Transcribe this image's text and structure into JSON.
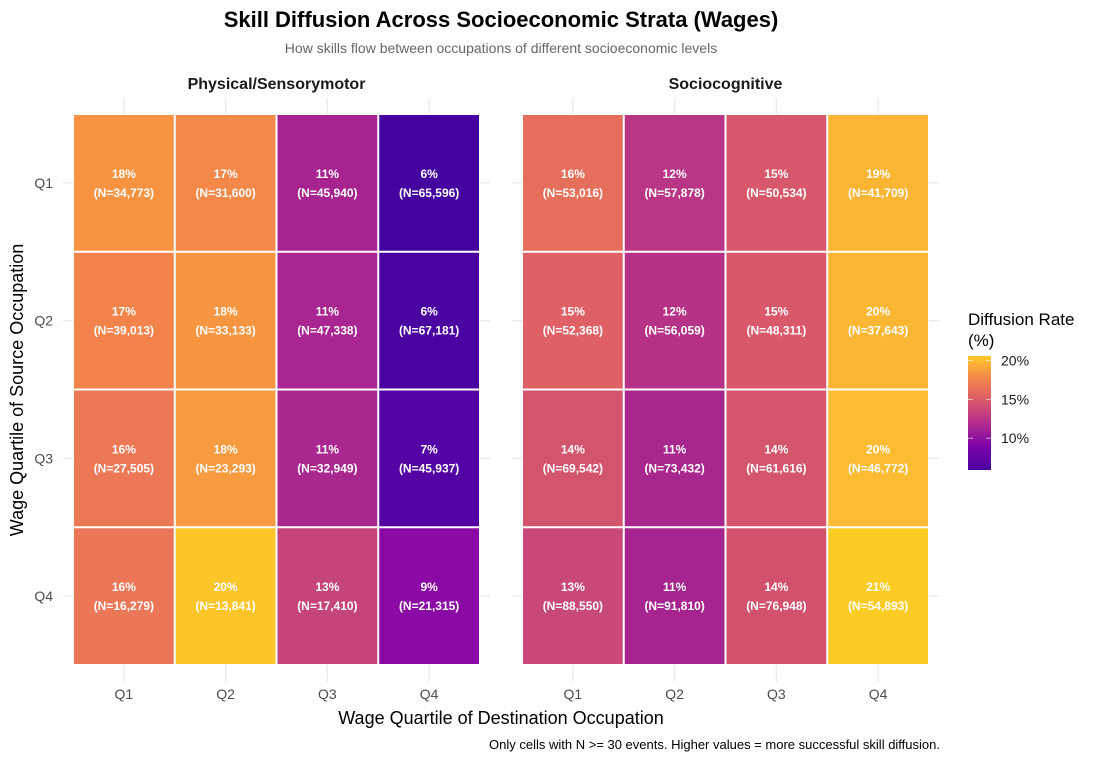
{
  "chart_data": {
    "type": "heatmap",
    "title": "Skill Diffusion Across Socioeconomic Strata (Wages)",
    "subtitle": "How skills flow between occupations of different socioeconomic levels",
    "xlabel": "Wage Quartile of Destination Occupation",
    "ylabel": "Wage Quartile of Source Occupation",
    "caption": "Only cells with N >= 30 events. Higher values = more successful skill diffusion.",
    "x_categories": [
      "Q1",
      "Q2",
      "Q3",
      "Q4"
    ],
    "y_categories": [
      "Q1",
      "Q2",
      "Q3",
      "Q4"
    ],
    "legend": {
      "title_line1": "Diffusion Rate",
      "title_line2": "(%)",
      "position": "right",
      "ticks": [
        {
          "value": 20,
          "label": "20%"
        },
        {
          "value": 15,
          "label": "15%"
        },
        {
          "value": 10,
          "label": "10%"
        }
      ],
      "limits": [
        5.9,
        20.6
      ],
      "palette": [
        "#0d0887",
        "#46039f",
        "#7201a8",
        "#9c179e",
        "#bd3786",
        "#d8576b",
        "#ed7953",
        "#fb9f3a",
        "#fdca26",
        "#f0f921"
      ]
    },
    "panels": [
      {
        "name": "Physical/Sensorymotor",
        "cells": [
          [
            {
              "value": 18,
              "label": "18%",
              "n": "(N=34,773)",
              "color": "#f89441"
            },
            {
              "value": 17,
              "label": "17%",
              "n": "(N=31,600)",
              "color": "#f48849"
            },
            {
              "value": 11,
              "label": "11%",
              "n": "(N=45,940)",
              "color": "#a62390"
            },
            {
              "value": 6,
              "label": "6%",
              "n": "(N=65,596)",
              "color": "#44039e"
            }
          ],
          [
            {
              "value": 17,
              "label": "17%",
              "n": "(N=39,013)",
              "color": "#f2844b"
            },
            {
              "value": 18,
              "label": "18%",
              "n": "(N=33,133)",
              "color": "#f89540"
            },
            {
              "value": 11,
              "label": "11%",
              "n": "(N=47,338)",
              "color": "#a82592"
            },
            {
              "value": 6,
              "label": "6%",
              "n": "(N=67,181)",
              "color": "#4a02a0"
            }
          ],
          [
            {
              "value": 16,
              "label": "16%",
              "n": "(N=27,505)",
              "color": "#ec7856"
            },
            {
              "value": 18,
              "label": "18%",
              "n": "(N=23,293)",
              "color": "#f89a3f"
            },
            {
              "value": 11,
              "label": "11%",
              "n": "(N=32,949)",
              "color": "#a82890"
            },
            {
              "value": 7,
              "label": "7%",
              "n": "(N=45,937)",
              "color": "#5302a3"
            }
          ],
          [
            {
              "value": 16,
              "label": "16%",
              "n": "(N=16,279)",
              "color": "#eb7758"
            },
            {
              "value": 20,
              "label": "20%",
              "n": "(N=13,841)",
              "color": "#fdc52a"
            },
            {
              "value": 13,
              "label": "13%",
              "n": "(N=17,410)",
              "color": "#c5457a"
            },
            {
              "value": 9,
              "label": "9%",
              "n": "(N=21,315)",
              "color": "#8b0aa5"
            }
          ]
        ]
      },
      {
        "name": "Sociocognitive",
        "cells": [
          [
            {
              "value": 16,
              "label": "16%",
              "n": "(N=53,016)",
              "color": "#e66f5c"
            },
            {
              "value": 12,
              "label": "12%",
              "n": "(N=57,878)",
              "color": "#b93585"
            },
            {
              "value": 15,
              "label": "15%",
              "n": "(N=50,534)",
              "color": "#d8586b"
            },
            {
              "value": 19,
              "label": "19%",
              "n": "(N=41,709)",
              "color": "#fbb535"
            }
          ],
          [
            {
              "value": 15,
              "label": "15%",
              "n": "(N=52,368)",
              "color": "#df6166"
            },
            {
              "value": 12,
              "label": "12%",
              "n": "(N=56,059)",
              "color": "#b53287"
            },
            {
              "value": 15,
              "label": "15%",
              "n": "(N=48,311)",
              "color": "#d9596b"
            },
            {
              "value": 20,
              "label": "20%",
              "n": "(N=37,643)",
              "color": "#fbb734"
            }
          ],
          [
            {
              "value": 14,
              "label": "14%",
              "n": "(N=69,542)",
              "color": "#d3546d"
            },
            {
              "value": 11,
              "label": "11%",
              "n": "(N=73,432)",
              "color": "#a8278f"
            },
            {
              "value": 14,
              "label": "14%",
              "n": "(N=61,616)",
              "color": "#d5566c"
            },
            {
              "value": 20,
              "label": "20%",
              "n": "(N=46,772)",
              "color": "#fbbb33"
            }
          ],
          [
            {
              "value": 13,
              "label": "13%",
              "n": "(N=88,550)",
              "color": "#c8487a"
            },
            {
              "value": 11,
              "label": "11%",
              "n": "(N=91,810)",
              "color": "#a5248f"
            },
            {
              "value": 14,
              "label": "14%",
              "n": "(N=76,948)",
              "color": "#d2526e"
            },
            {
              "value": 21,
              "label": "21%",
              "n": "(N=54,893)",
              "color": "#fccc25"
            }
          ]
        ]
      }
    ]
  }
}
